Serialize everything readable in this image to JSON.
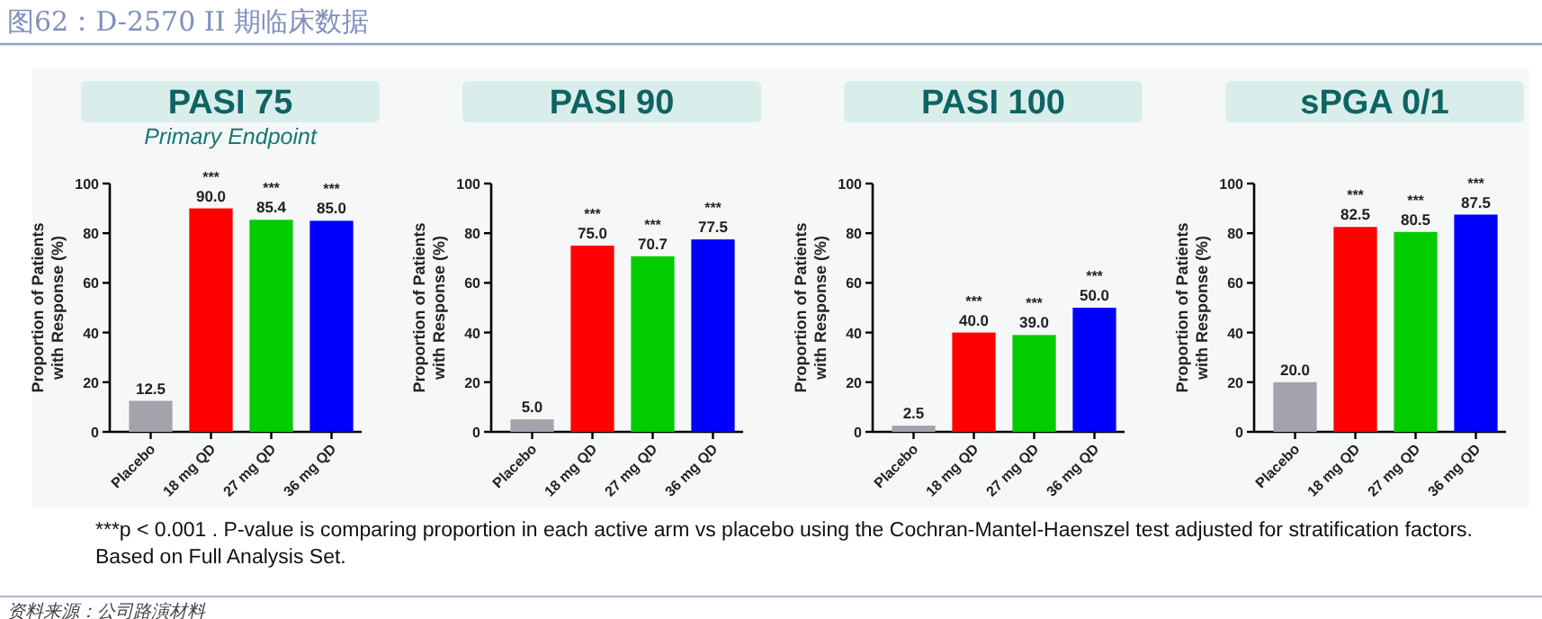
{
  "chart_data": [
    {
      "type": "bar",
      "title": "PASI 75",
      "subtitle": "Primary Endpoint",
      "ylabel": "Proportion of Patients with Response (%)",
      "categories": [
        "Placebo",
        "18 mg QD",
        "27 mg QD",
        "36 mg QD"
      ],
      "values": [
        12.5,
        90.0,
        85.4,
        85.0
      ],
      "colors": [
        "#a3a3ab",
        "#ff0000",
        "#00cc00",
        "#0000ff"
      ],
      "value_labels": [
        "12.5",
        "90.0",
        "85.4",
        "85.0"
      ],
      "ylim": [
        0,
        100
      ],
      "yticks": [
        0,
        20,
        40,
        60,
        80,
        100
      ],
      "annotations": [
        "图62：D-2570 II 期临床数据",
        "***p < 0.001 . P-value is comparing proportion in each active arm vs placebo using the Cochran-Mantel-Haenszel test adjusted for stratification factors.",
        "Based on Full Analysis Set.",
        "资料来源：公司路演材料",
        {
          "text": "***",
          "x": "18 mg QD",
          "y": 90.0
        },
        {
          "text": "***",
          "x": "27 mg QD",
          "y": 85.4
        },
        {
          "text": "***",
          "x": "36 mg QD",
          "y": 85.0
        }
      ]
    },
    {
      "type": "bar",
      "title": "PASI 90",
      "ylabel": "Proportion of Patients with Response (%)",
      "categories": [
        "Placebo",
        "18 mg QD",
        "27 mg QD",
        "36 mg QD"
      ],
      "values": [
        5.0,
        75.0,
        70.7,
        77.5
      ],
      "colors": [
        "#a3a3ab",
        "#ff0000",
        "#00cc00",
        "#0000ff"
      ],
      "value_labels": [
        "5.0",
        "75.0",
        "70.7",
        "77.5"
      ],
      "ylim": [
        0,
        100
      ],
      "yticks": [
        0,
        20,
        40,
        60,
        80,
        100
      ],
      "annotations": [
        {
          "text": "***",
          "x": "18 mg QD",
          "y": 75.0
        },
        {
          "text": "***",
          "x": "27 mg QD",
          "y": 70.7
        },
        {
          "text": "***",
          "x": "36 mg QD",
          "y": 77.5
        }
      ]
    },
    {
      "type": "bar",
      "title": "PASI 100",
      "ylabel": "Proportion of Patients with Response (%)",
      "categories": [
        "Placebo",
        "18 mg QD",
        "27 mg QD",
        "36 mg QD"
      ],
      "values": [
        2.5,
        40.0,
        39.0,
        50.0
      ],
      "colors": [
        "#a3a3ab",
        "#ff0000",
        "#00cc00",
        "#0000ff"
      ],
      "value_labels": [
        "2.5",
        "40.0",
        "39.0",
        "50.0"
      ],
      "ylim": [
        0,
        100
      ],
      "yticks": [
        0,
        20,
        40,
        60,
        80,
        100
      ],
      "annotations": [
        {
          "text": "***",
          "x": "18 mg QD",
          "y": 40.0
        },
        {
          "text": "***",
          "x": "27 mg QD",
          "y": 39.0
        },
        {
          "text": "***",
          "x": "36 mg QD",
          "y": 50.0
        }
      ]
    },
    {
      "type": "bar",
      "title": "sPGA 0/1",
      "ylabel": "Proportion of Patients with Response (%)",
      "categories": [
        "Placebo",
        "18 mg QD",
        "27 mg QD",
        "36 mg QD"
      ],
      "values": [
        20.0,
        82.5,
        80.5,
        87.5
      ],
      "colors": [
        "#a3a3ab",
        "#ff0000",
        "#00cc00",
        "#0000ff"
      ],
      "value_labels": [
        "20.0",
        "82.5",
        "80.5",
        "87.5"
      ],
      "ylim": [
        0,
        100
      ],
      "yticks": [
        0,
        20,
        40,
        60,
        80,
        100
      ],
      "annotations": [
        {
          "text": "***",
          "x": "18 mg QD",
          "y": 82.5
        },
        {
          "text": "***",
          "x": "27 mg QD",
          "y": 80.5
        },
        {
          "text": "***",
          "x": "36 mg QD",
          "y": 87.5
        }
      ]
    }
  ]
}
